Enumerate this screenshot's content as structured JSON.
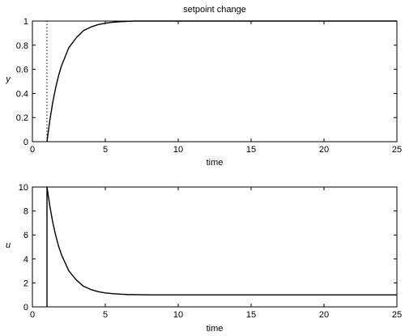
{
  "figure": {
    "title": "setpoint change"
  },
  "chart_data": [
    {
      "type": "line",
      "title": "setpoint change",
      "xlabel": "time",
      "ylabel": "y",
      "xlim": [
        0,
        25
      ],
      "ylim": [
        0,
        1
      ],
      "xticks": [
        0,
        5,
        10,
        15,
        20,
        25
      ],
      "yticks": [
        0,
        0.2,
        0.4,
        0.6,
        0.8,
        1
      ],
      "xtick_labels": [
        "0",
        "5",
        "10",
        "15",
        "20",
        "25"
      ],
      "ytick_labels": [
        "0",
        "0.2",
        "0.4",
        "0.6",
        "0.8",
        "1"
      ],
      "grid": false,
      "series": [
        {
          "style": "solid",
          "color": "#000000",
          "x": [
            1.0,
            1.2,
            1.4,
            1.6,
            1.8,
            2.0,
            2.5,
            3.0,
            3.5,
            4.0,
            4.5,
            5.0,
            5.5,
            6.0,
            7.0,
            8.0,
            10.0,
            15.0,
            20.0,
            25.0
          ],
          "y": [
            0.0,
            0.18,
            0.33,
            0.45,
            0.55,
            0.63,
            0.78,
            0.86,
            0.92,
            0.95,
            0.97,
            0.982,
            0.99,
            0.995,
            1.0,
            1.0,
            1.0,
            1.0,
            1.0,
            1.0
          ]
        },
        {
          "style": "dotted",
          "color": "#000000",
          "x": [
            1.0,
            1.0,
            25.0
          ],
          "y": [
            0.0,
            1.0,
            1.0
          ]
        }
      ]
    },
    {
      "type": "line",
      "title": "",
      "xlabel": "time",
      "ylabel": "u",
      "xlim": [
        0,
        25
      ],
      "ylim": [
        0,
        10
      ],
      "xticks": [
        0,
        5,
        10,
        15,
        20,
        25
      ],
      "yticks": [
        0,
        2,
        4,
        6,
        8,
        10
      ],
      "xtick_labels": [
        "0",
        "5",
        "10",
        "15",
        "20",
        "25"
      ],
      "ytick_labels": [
        "0",
        "2",
        "4",
        "6",
        "8",
        "10"
      ],
      "grid": false,
      "series": [
        {
          "style": "solid",
          "color": "#000000",
          "x": [
            1.0,
            1.0,
            1.2,
            1.4,
            1.6,
            1.8,
            2.0,
            2.5,
            3.0,
            3.5,
            4.0,
            4.5,
            5.0,
            5.5,
            6.0,
            6.5,
            8.0,
            10.0,
            15.0,
            20.0,
            25.0
          ],
          "y": [
            0.0,
            10.0,
            8.38,
            7.03,
            5.95,
            5.05,
            4.33,
            3.0,
            2.26,
            1.72,
            1.45,
            1.27,
            1.16,
            1.1,
            1.06,
            1.03,
            1.0,
            1.0,
            1.0,
            1.0,
            1.0
          ]
        }
      ]
    }
  ]
}
